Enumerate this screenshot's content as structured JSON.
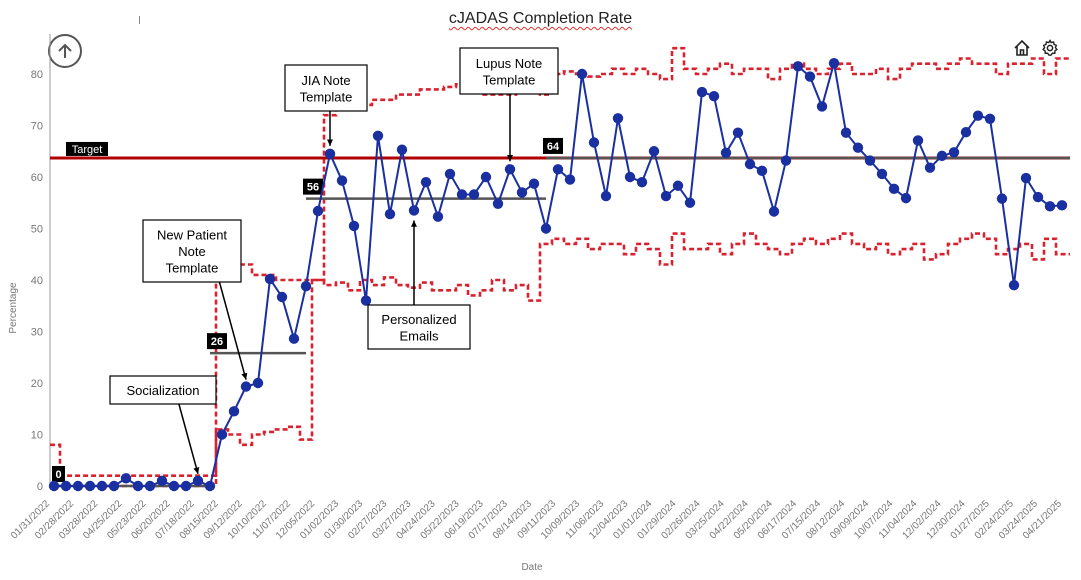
{
  "chart_data": {
    "type": "line",
    "title": "cJADAS Completion Rate",
    "xlabel": "Date",
    "ylabel": "Percentage",
    "ylim": [
      0,
      86
    ],
    "yticks": [
      0,
      10,
      20,
      30,
      40,
      50,
      60,
      70,
      80
    ],
    "xtick_labels": [
      "01/31/2022",
      "02/28/2022",
      "03/28/2022",
      "04/25/2022",
      "05/23/2022",
      "06/20/2022",
      "07/18/2022",
      "08/15/2022",
      "09/12/2022",
      "10/10/2022",
      "11/07/2022",
      "12/05/2022",
      "01/02/2023",
      "01/30/2023",
      "02/27/2023",
      "03/27/2023",
      "04/24/2023",
      "05/22/2023",
      "06/19/2023",
      "07/17/2023",
      "08/14/2023",
      "09/11/2023",
      "10/09/2023",
      "11/06/2023",
      "12/04/2023",
      "01/01/2024",
      "01/29/2024",
      "02/26/2024",
      "03/25/2024",
      "04/22/2024",
      "05/20/2024",
      "06/17/2024",
      "07/15/2024",
      "08/12/2024",
      "09/09/2024",
      "10/07/2024",
      "11/04/2024",
      "12/02/2024",
      "12/30/2024",
      "01/27/2025",
      "02/24/2025",
      "03/24/2025",
      "04/21/2025"
    ],
    "series": [
      {
        "name": "cJADAS Completion Rate",
        "color": "#1a2fa0",
        "values": [
          0,
          0,
          0,
          0,
          0,
          0,
          1.5,
          0,
          0,
          1,
          0,
          0,
          1,
          0,
          10,
          14.5,
          19.3,
          20,
          40.2,
          36.7,
          28.6,
          38.8,
          53.4,
          64.5,
          59.3,
          50.5,
          36,
          68,
          52.8,
          65.3,
          53.5,
          59,
          52.3,
          60.6,
          56.6,
          56.6,
          60,
          54.8,
          61.5,
          57,
          58.7,
          50,
          61.5,
          59.5,
          80,
          66.7,
          56.3,
          71.4,
          60,
          59,
          65,
          56.3,
          58.3,
          55,
          76.5,
          75.7,
          64.7,
          68.6,
          62.5,
          61.2,
          53.3,
          63.2,
          81.5,
          79.5,
          73.7,
          82.1,
          68.6,
          65.7,
          63.2,
          60.6,
          57.7,
          55.9,
          67.1,
          61.8,
          64.1,
          64.8,
          68.7,
          71.9,
          71.3,
          55.8,
          39,
          59.8,
          56.1,
          54.3,
          54.5
        ]
      },
      {
        "name": "Centerline",
        "color": "#555555",
        "segments": [
          {
            "from_index": 0,
            "to_index": 13,
            "value": 0
          },
          {
            "from_index": 13,
            "to_index": 21,
            "value": 25.8
          },
          {
            "from_index": 21,
            "to_index": 41,
            "value": 55.8
          },
          {
            "from_index": 41,
            "to_index": 84,
            "value": 63.7
          }
        ]
      },
      {
        "name": "Upper control limit",
        "color": "#d8222f",
        "values": [
          8,
          2,
          2,
          2,
          2,
          2,
          2,
          2,
          2,
          2,
          2,
          2,
          2,
          2,
          40,
          41,
          43,
          41,
          41,
          40,
          40,
          40,
          40,
          72,
          73.5,
          74,
          74,
          75,
          75,
          76,
          76,
          77,
          77,
          77.5,
          78,
          77,
          76,
          76,
          76,
          77,
          77,
          76,
          80,
          80.5,
          80,
          79.5,
          80,
          81,
          80,
          81,
          80,
          79,
          85,
          81,
          80,
          81,
          82,
          80,
          81,
          81,
          79,
          81,
          82,
          81,
          80,
          81,
          82,
          80,
          80,
          81,
          79,
          81,
          82,
          82,
          81,
          82,
          83,
          82,
          82,
          80,
          82,
          82,
          83,
          80,
          83
        ]
      },
      {
        "name": "Lower control limit",
        "color": "#d8222f",
        "values": [
          0,
          0,
          0,
          0,
          0,
          0,
          0,
          0,
          0,
          0,
          0,
          0,
          0,
          0,
          11,
          10,
          8,
          10,
          10.5,
          11,
          11.5,
          9,
          40,
          39,
          39.5,
          38,
          40,
          39,
          40.5,
          39,
          38.5,
          39.5,
          38,
          38,
          39,
          37,
          38,
          40,
          38,
          39,
          36,
          47,
          48,
          47,
          48,
          46,
          47,
          47,
          45,
          47,
          46,
          43,
          49,
          46,
          46,
          47,
          45,
          47,
          49,
          47,
          46,
          45,
          47,
          48,
          47,
          48,
          49,
          47,
          46,
          47,
          45,
          46,
          47,
          44,
          45,
          47,
          48,
          49,
          48,
          45,
          46,
          47,
          44,
          48,
          45
        ]
      },
      {
        "name": "Target",
        "color": "#b00000",
        "value": 63.7
      }
    ],
    "annotations": [
      {
        "text": "Socialization",
        "point_index": 12
      },
      {
        "text": "New Patient Note Template",
        "point_index": 16
      },
      {
        "text": "JIA Note Template",
        "point_index": 23
      },
      {
        "text": "Personalized Emails",
        "point_index": 30
      },
      {
        "text": "Lupus Note Template",
        "point_index": 38
      }
    ],
    "centerline_labels": [
      "0",
      "26",
      "56",
      "64"
    ],
    "target_label": "Target"
  }
}
